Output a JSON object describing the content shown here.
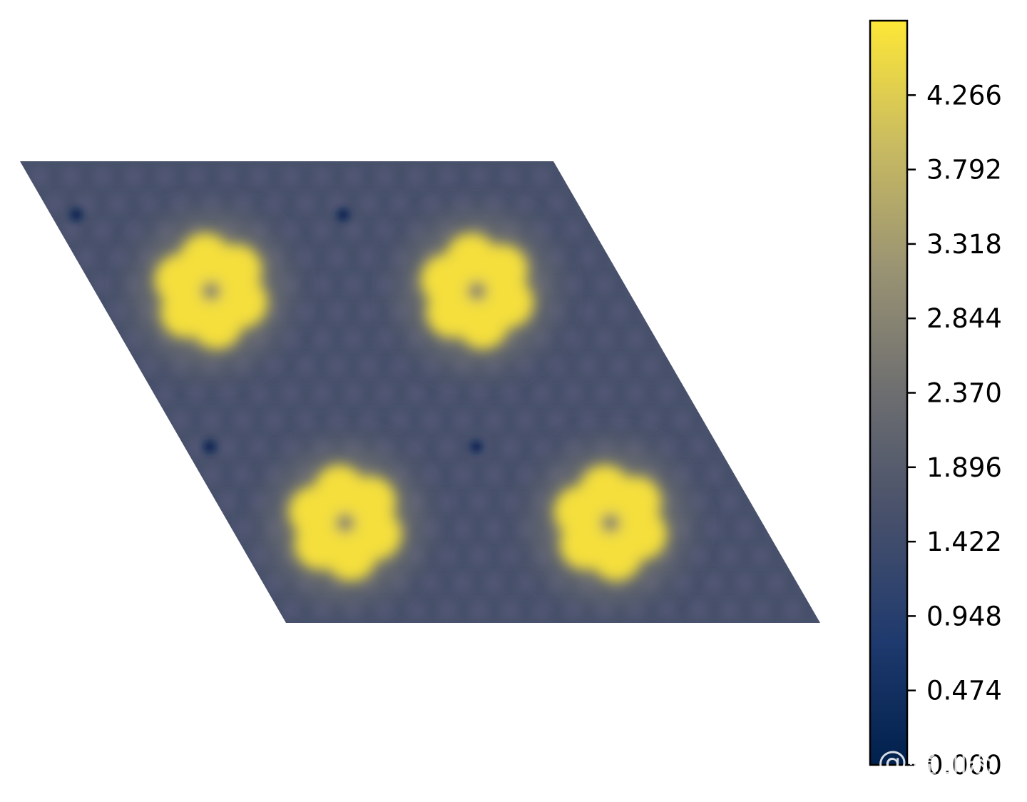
{
  "chart_data": {
    "type": "heatmap",
    "title": "",
    "xlabel": "",
    "ylabel": "",
    "grid": false,
    "colormap": "cividis",
    "colormap_stops": [
      "#00204d",
      "#1f3a6e",
      "#47506b",
      "#6d6e70",
      "#9a9373",
      "#c9bb61",
      "#fde737"
    ],
    "domain_shape": "rhombus",
    "lattice_background_value": 1.6,
    "hotspot_value": 4.6,
    "hotspot_center_value": 2.5,
    "minima_value": 0.2,
    "hotspot_count": 4,
    "colorbar": {
      "range": [
        0.0,
        4.74
      ],
      "ticks": [
        0.0,
        0.474,
        0.948,
        1.422,
        1.896,
        2.37,
        2.844,
        3.318,
        3.792,
        4.266
      ],
      "tick_labels": [
        "0.000",
        "0.474",
        "0.948",
        "1.422",
        "1.896",
        "2.370",
        "2.844",
        "3.318",
        "3.792",
        "4.266"
      ]
    }
  },
  "watermark": "知乎 @叠加态"
}
